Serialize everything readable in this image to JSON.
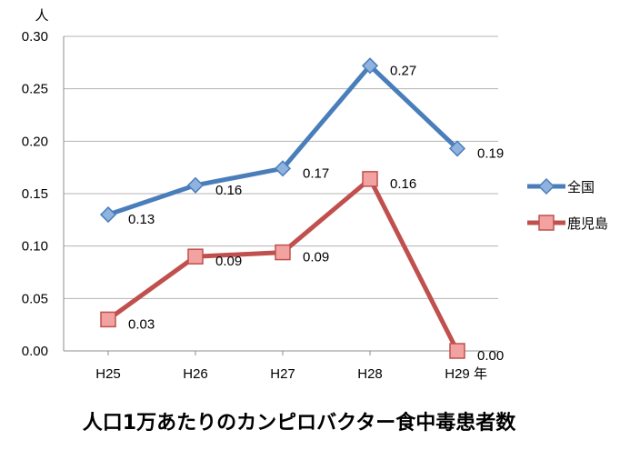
{
  "chart_data": {
    "type": "line",
    "title": "人口1万あたりのカンピロバクター食中毒患者数",
    "ylabel": "人",
    "xlabel": "年",
    "categories": [
      "H25",
      "H26",
      "H27",
      "H28",
      "H29"
    ],
    "ylim": [
      0,
      0.3
    ],
    "yticks": [
      "0.00",
      "0.05",
      "0.10",
      "0.15",
      "0.20",
      "0.25",
      "0.30"
    ],
    "grid": true,
    "legend_position": "right",
    "series": [
      {
        "name": "全国",
        "values": [
          0.13,
          0.158,
          0.174,
          0.272,
          0.193
        ],
        "labels": [
          "0.13",
          "0.16",
          "0.17",
          "0.27",
          "0.19"
        ],
        "color": "#4a7ebb",
        "marker": "diamond",
        "marker_color": "#8fb3de"
      },
      {
        "name": "鹿児島",
        "values": [
          0.03,
          0.09,
          0.094,
          0.164,
          0.0
        ],
        "labels": [
          "0.03",
          "0.09",
          "0.09",
          "0.16",
          "0.00"
        ],
        "color": "#c0504d",
        "marker": "square",
        "marker_color": "#f2a3a1"
      }
    ]
  }
}
